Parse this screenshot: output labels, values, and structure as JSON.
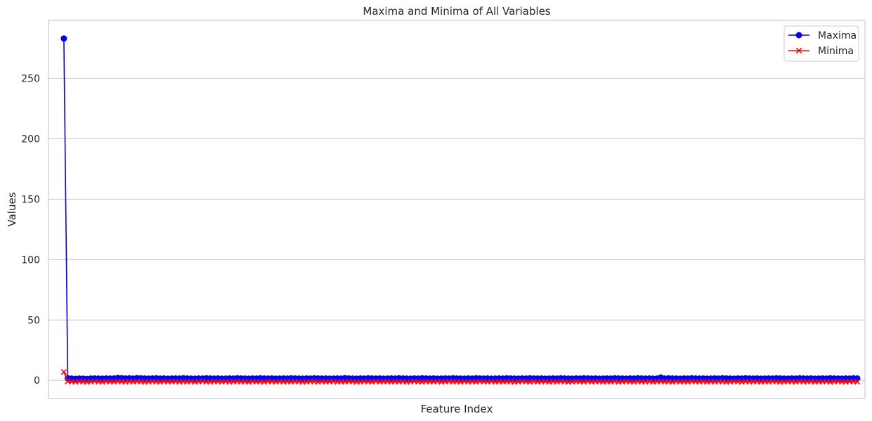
{
  "chart_data": {
    "type": "line",
    "title": "Maxima and Minima of All Variables",
    "xlabel": "Feature Index",
    "ylabel": "Values",
    "ylim": [
      -15,
      298
    ],
    "xlim": [
      -4,
      208
    ],
    "yticks": [
      0,
      50,
      100,
      150,
      200,
      250
    ],
    "ytick_labels": [
      "0",
      "50",
      "100",
      "150",
      "200",
      "250"
    ],
    "grid": "horizontal",
    "legend_position": "top-right",
    "n_features": 205,
    "series": [
      {
        "name": "Maxima",
        "marker": "circle",
        "color": "#0000ff",
        "values": [
          283,
          1.7,
          1.5,
          1.3,
          1.5,
          1.4,
          1.2,
          1.5,
          1.6,
          1.5,
          1.4,
          1.6,
          1.5,
          1.6,
          2.0,
          1.8,
          1.6,
          1.7,
          1.5,
          1.9,
          1.7,
          1.6,
          1.5,
          1.6,
          1.7,
          1.5,
          1.6,
          1.4,
          1.5,
          1.6,
          1.5,
          1.7,
          1.6,
          1.5,
          1.4,
          1.6,
          1.5,
          1.7,
          1.6,
          1.5,
          1.6,
          1.4,
          1.5,
          1.6,
          1.5,
          1.7,
          1.6,
          1.5,
          1.4,
          1.6,
          1.5,
          1.7,
          1.6,
          1.5,
          1.6,
          1.4,
          1.5,
          1.6,
          1.5,
          1.7,
          1.6,
          1.5,
          1.4,
          1.6,
          1.5,
          1.7,
          1.6,
          1.5,
          1.6,
          1.4,
          1.5,
          1.6,
          1.5,
          1.9,
          1.6,
          1.5,
          1.4,
          1.6,
          1.5,
          1.7,
          1.6,
          1.5,
          1.6,
          1.4,
          1.5,
          1.6,
          1.5,
          1.7,
          1.6,
          1.5,
          1.4,
          1.6,
          1.5,
          1.7,
          1.6,
          1.5,
          1.6,
          1.4,
          1.5,
          1.6,
          1.5,
          1.7,
          1.6,
          1.5,
          1.4,
          1.6,
          1.5,
          1.7,
          1.6,
          1.5,
          1.6,
          1.4,
          1.5,
          1.6,
          1.5,
          1.7,
          1.6,
          1.5,
          1.4,
          1.6,
          1.5,
          1.7,
          1.6,
          1.5,
          1.6,
          1.4,
          1.5,
          1.6,
          1.5,
          1.7,
          1.6,
          1.5,
          1.4,
          1.6,
          1.5,
          1.7,
          1.6,
          1.5,
          1.6,
          1.4,
          1.5,
          1.6,
          1.5,
          1.7,
          1.6,
          1.5,
          1.4,
          1.6,
          1.5,
          1.7,
          1.6,
          1.5,
          1.6,
          1.4,
          1.5,
          2.4,
          1.5,
          1.7,
          1.6,
          1.5,
          1.4,
          1.6,
          1.5,
          1.7,
          1.6,
          1.5,
          1.6,
          1.4,
          1.5,
          1.6,
          1.5,
          1.7,
          1.6,
          1.5,
          1.4,
          1.6,
          1.5,
          1.7,
          1.6,
          1.5,
          1.6,
          1.4,
          1.5,
          1.6,
          1.5,
          1.7,
          1.6,
          1.5,
          1.4,
          1.6,
          1.5,
          1.7,
          1.6,
          1.5,
          1.6,
          1.4,
          1.5,
          1.6,
          1.5,
          1.7,
          1.6,
          1.5,
          1.4,
          1.6,
          1.5,
          1.7,
          1.6
        ]
      },
      {
        "name": "Minima",
        "marker": "x",
        "color": "#ff0000",
        "values": [
          7,
          -0.8,
          -1.0,
          -1.2,
          -0.9,
          -1.1,
          -1.3,
          -1.0,
          -0.8,
          -1.1,
          -1.2,
          -0.9,
          -1.0,
          -1.1,
          -0.7,
          -1.0,
          -1.2,
          -0.9,
          -1.1,
          -0.8,
          -1.0,
          -1.3,
          -1.1,
          -0.9,
          -1.0,
          -1.2,
          -0.8,
          -1.1,
          -1.0,
          -0.9,
          -1.2,
          -1.0,
          -1.1,
          -0.9,
          -1.3,
          -1.0,
          -0.8,
          -1.1,
          -1.2,
          -0.9,
          -1.0,
          -1.1,
          -0.9,
          -1.2,
          -1.0,
          -0.8,
          -1.1,
          -1.0,
          -1.3,
          -0.9,
          -1.1,
          -1.0,
          -1.2,
          -0.8,
          -1.0,
          -1.1,
          -0.9,
          -1.2,
          -1.0,
          -1.1,
          -0.9,
          -1.0,
          -1.3,
          -1.1,
          -0.8,
          -1.0,
          -1.2,
          -0.9,
          -1.1,
          -1.0,
          -0.9,
          -1.2,
          -1.0,
          -1.1,
          -0.8,
          -1.0,
          -1.3,
          -1.1,
          -0.9,
          -1.0,
          -1.2,
          -0.8,
          -1.1,
          -1.0,
          -0.9,
          -1.2,
          -1.0,
          -1.1,
          -0.9,
          -1.3,
          -1.0,
          -0.8,
          -1.1,
          -1.2,
          -0.9,
          -1.0,
          -1.1,
          -0.9,
          -1.2,
          -1.0,
          -0.8,
          -1.1,
          -1.0,
          -1.3,
          -0.9,
          -1.1,
          -1.0,
          -1.2,
          -0.8,
          -1.0,
          -1.1,
          -0.9,
          -1.2,
          -1.0,
          -1.1,
          -0.9,
          -1.0,
          -1.3,
          -1.1,
          -0.8,
          -1.0,
          -1.2,
          -0.9,
          -1.1,
          -1.0,
          -0.9,
          -1.2,
          -1.0,
          -1.1,
          -0.8,
          -1.0,
          -1.3,
          -1.1,
          -0.9,
          -1.0,
          -1.2,
          -0.8,
          -1.1,
          -1.0,
          -0.9,
          -1.2,
          -1.0,
          -1.1,
          -0.9,
          -1.3,
          -1.0,
          -0.8,
          -1.1,
          -1.2,
          -0.9,
          -1.0,
          -1.1,
          -0.9,
          -1.2,
          -1.0,
          -0.8,
          -1.1,
          -1.0,
          -1.3,
          -0.9,
          -1.1,
          -1.0,
          -1.2,
          -0.8,
          -1.0,
          -1.1,
          -0.9,
          -1.2,
          -1.0,
          -1.1,
          -0.9,
          -1.0,
          -1.3,
          -1.1,
          -0.8,
          -1.0,
          -1.2,
          -0.9,
          -1.1,
          -1.0,
          -0.9,
          -1.2,
          -1.0,
          -1.1,
          -0.8,
          -1.0,
          -1.3,
          -1.1,
          -0.9,
          -1.0,
          -1.2,
          -0.8,
          -1.1,
          -1.0,
          -0.9,
          -1.2,
          -1.0,
          -1.1,
          -0.9,
          -1.3,
          -1.0,
          -0.8,
          -1.1,
          -1.2,
          -0.9,
          -1.0,
          -1.1
        ]
      }
    ]
  }
}
